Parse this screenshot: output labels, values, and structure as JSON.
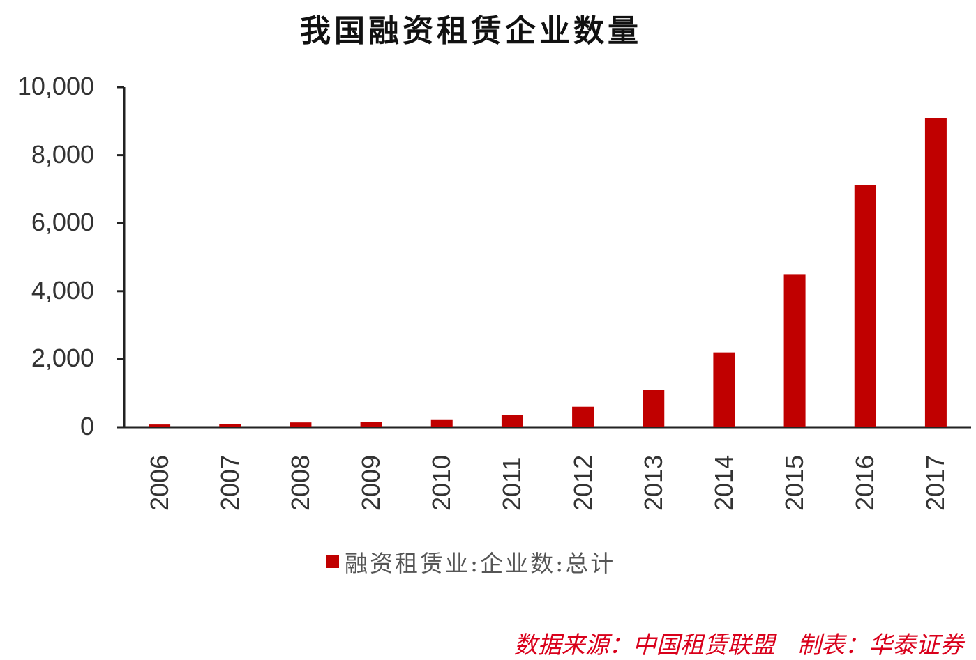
{
  "title": "我国融资租赁企业数量",
  "legend": {
    "label": "融资租赁业:企业数:总计",
    "color": "#c00000"
  },
  "source": "数据来源：中国租赁联盟   制表：华泰证券",
  "axis": {
    "y_ticks": [
      "10,000",
      "8,000",
      "6,000",
      "4,000",
      "2,000",
      "0"
    ],
    "x_ticks": [
      "2006",
      "2007",
      "2008",
      "2009",
      "2010",
      "2011",
      "2012",
      "2013",
      "2014",
      "2015",
      "2016",
      "2017"
    ]
  },
  "chart_data": {
    "type": "bar",
    "title": "我国融资租赁企业数量",
    "xlabel": "",
    "ylabel": "",
    "categories": [
      "2006",
      "2007",
      "2008",
      "2009",
      "2010",
      "2011",
      "2012",
      "2013",
      "2014",
      "2015",
      "2016",
      "2017"
    ],
    "series": [
      {
        "name": "融资租赁业:企业数:总计",
        "color": "#c00000",
        "values": [
          80,
          93,
          140,
          160,
          230,
          350,
          600,
          1100,
          2200,
          4500,
          7120,
          9090
        ]
      }
    ],
    "ylim": [
      0,
      10000
    ],
    "y_ticks": [
      0,
      2000,
      4000,
      6000,
      8000,
      10000
    ],
    "grid": false,
    "legend_position": "bottom",
    "source_note": "数据来源：中国租赁联盟   制表：华泰证券"
  }
}
